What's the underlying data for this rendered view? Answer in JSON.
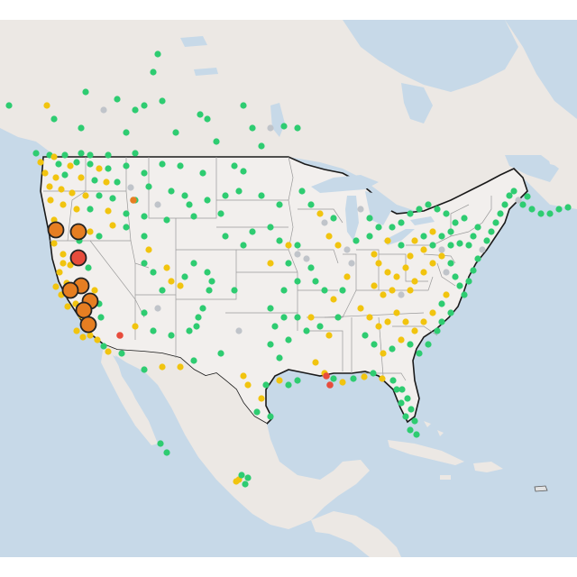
{
  "map": {
    "colors": {
      "water": "#c7d9e8",
      "land": "#efeae6",
      "us_land": "#f2efed",
      "border_country": "#1a1a1a",
      "border_state": "#9a9a9a",
      "good": "#2ecc71",
      "moderate": "#f1c40f",
      "unhealthy_sensitive": "#e67e22",
      "unhealthy": "#e74c3c",
      "no_data": "#c0c4ca"
    },
    "marker_categories": [
      "good",
      "moderate",
      "unhealthy_sensitive",
      "unhealthy",
      "no_data"
    ]
  }
}
